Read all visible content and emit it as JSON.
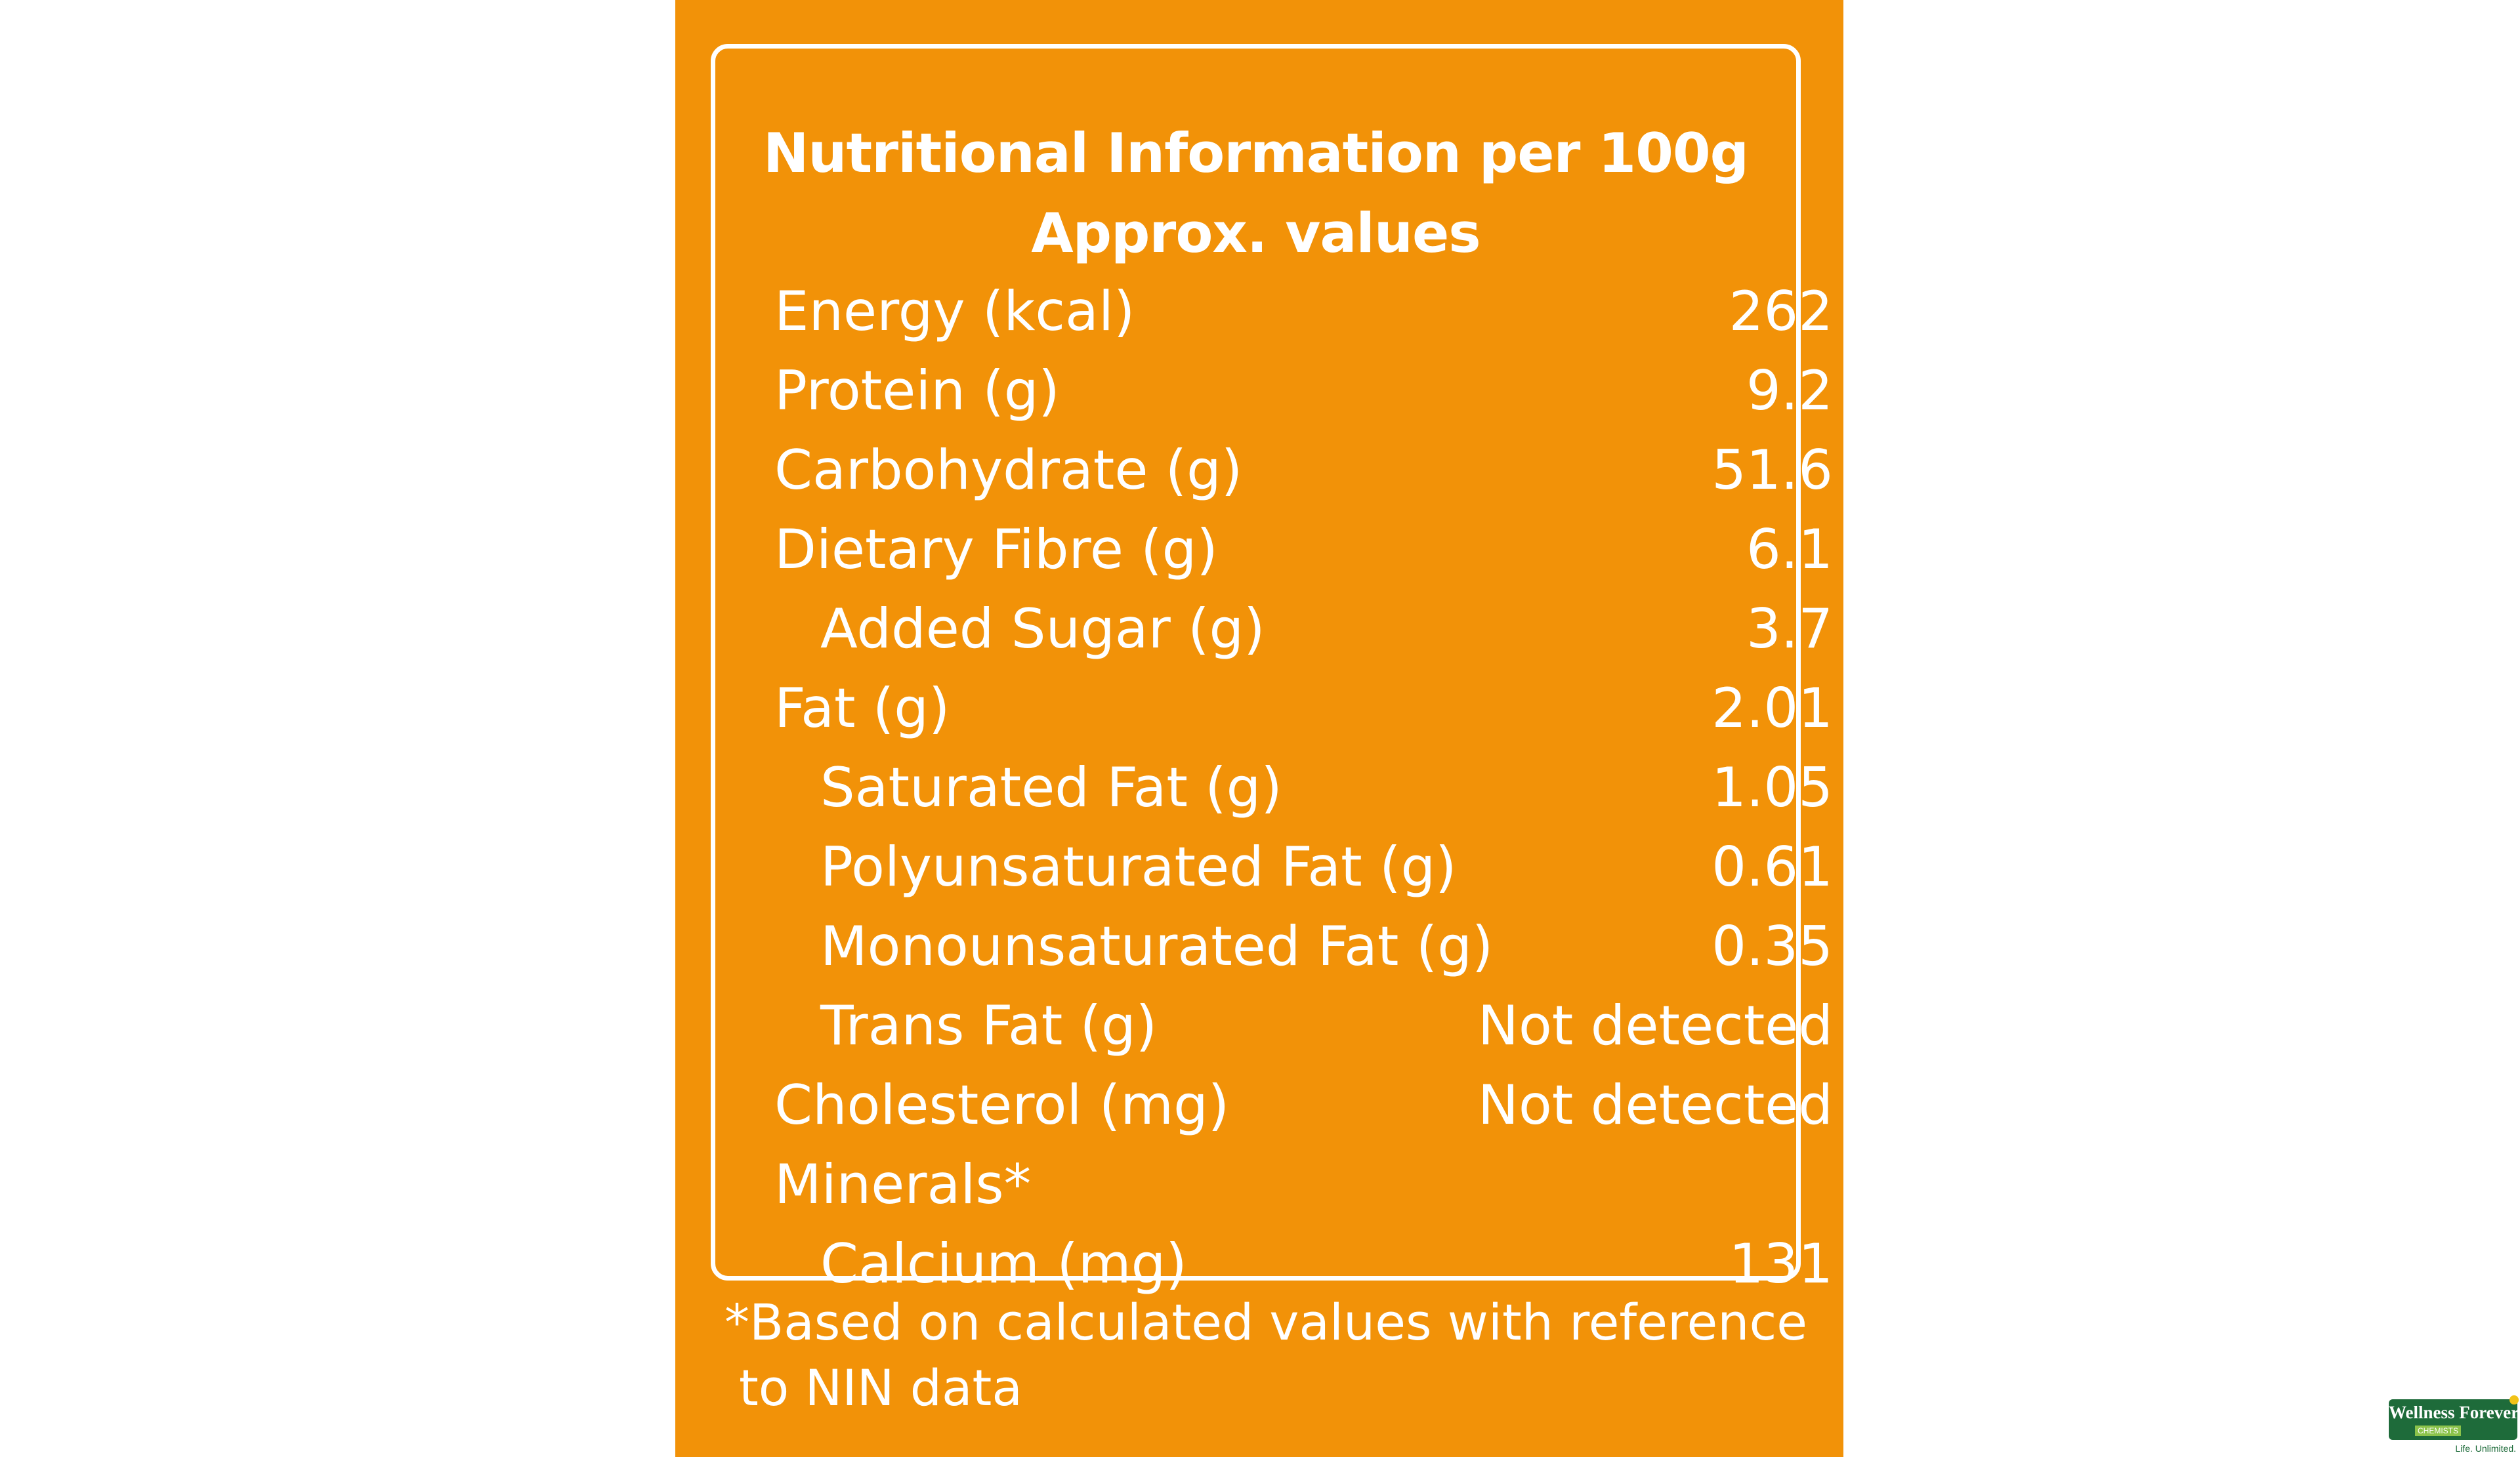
{
  "panel": {
    "background_color": "#F29208",
    "text_color": "#FFFFFF",
    "heading_line1": "Nutritional Information per 100g",
    "heading_line2": "Approx. values",
    "rows": [
      {
        "label": "Energy (kcal)",
        "value": "262"
      },
      {
        "label": "Protein (g)",
        "value": "9.2"
      },
      {
        "label": "Carbohydrate (g)",
        "value": "51.6"
      },
      {
        "label": "Dietary Fibre (g)",
        "value": "6.1"
      },
      {
        "label": "Added Sugar (g)",
        "value": "3.7"
      },
      {
        "label": "Fat (g)",
        "value": "2.01"
      },
      {
        "label": "Saturated Fat (g)",
        "value": "1.05"
      },
      {
        "label": "Polyunsaturated Fat (g)",
        "value": "0.61"
      },
      {
        "label": "Monounsaturated Fat (g)",
        "value": "0.35"
      },
      {
        "label": "Trans Fat (g)",
        "value": "Not detected"
      },
      {
        "label": "Cholesterol (mg)",
        "value": "Not detected"
      },
      {
        "label": "Minerals*",
        "value": ""
      },
      {
        "label": "Calcium (mg)",
        "value": "131"
      }
    ],
    "footnote_line1": "*Based on calculated values with reference",
    "footnote_line2": "to NIN data"
  },
  "watermark": {
    "brand": "Wellness Forever",
    "sub": "CHEMISTS",
    "tagline": "Life. Unlimited.",
    "brand_color": "#1E6B3A"
  }
}
